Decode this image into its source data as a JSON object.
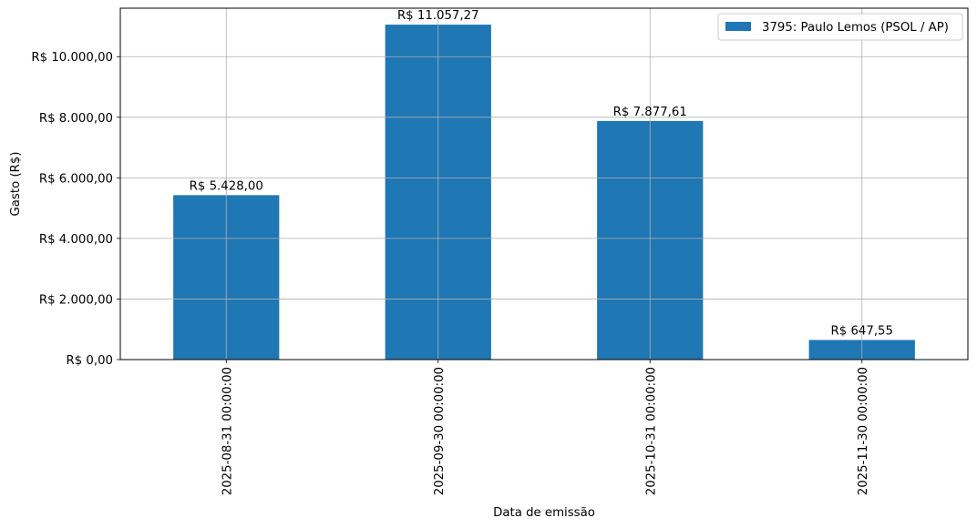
{
  "chart_data": {
    "type": "bar",
    "categories": [
      "2025-08-31 00:00:00",
      "2025-09-30 00:00:00",
      "2025-10-31 00:00:00",
      "2025-11-30 00:00:00"
    ],
    "series": [
      {
        "name": "3795: Paulo Lemos (PSOL / AP)",
        "values": [
          5428.0,
          11057.27,
          7877.61,
          647.55
        ],
        "labels": [
          "R$ 5.428,00",
          "R$ 11.057,27",
          "R$ 7.877,61",
          "R$ 647,55"
        ],
        "color": "#1f77b4"
      }
    ],
    "xlabel": "Data de emissão",
    "ylabel": "Gasto (R$)",
    "ylim": [
      0,
      11600
    ],
    "yticks": [
      0,
      2000,
      4000,
      6000,
      8000,
      10000
    ],
    "ytick_labels": [
      "R$ 0,00",
      "R$ 2.000,00",
      "R$ 4.000,00",
      "R$ 6.000,00",
      "R$ 8.000,00",
      "R$ 10.000,00"
    ],
    "grid": true,
    "legend_position": "top-right"
  }
}
